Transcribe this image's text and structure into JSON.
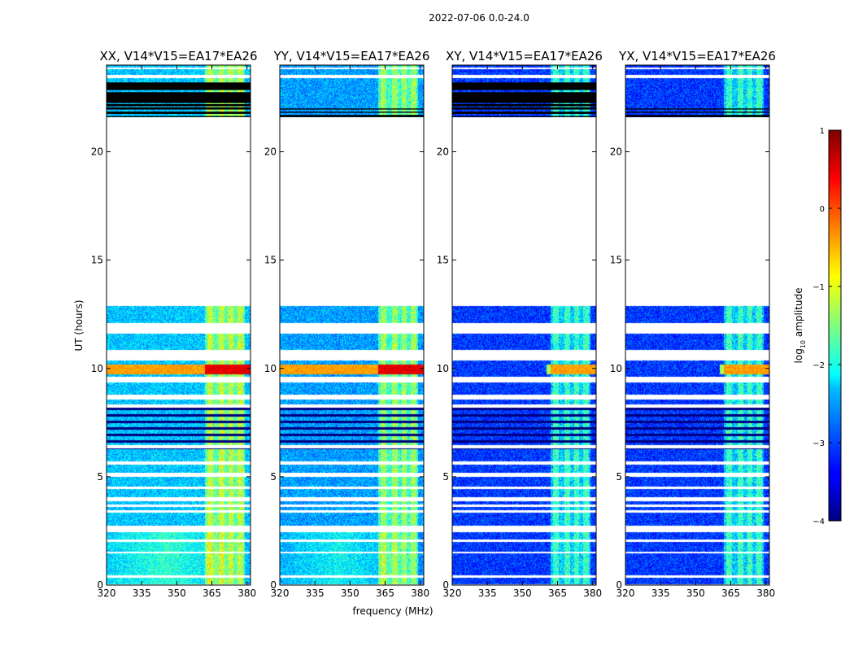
{
  "chart_data": {
    "type": "heatmap",
    "suptitle": "2022-07-06 0.0-24.0",
    "xlabel": "frequency (MHz)",
    "ylabel": "UT (hours)",
    "xlim": [
      320,
      381.5
    ],
    "ylim": [
      0,
      24
    ],
    "x_ticks": [
      "320",
      "335",
      "350",
      "365",
      "380"
    ],
    "x_tick_values": [
      320,
      335,
      350,
      365,
      380
    ],
    "y_ticks": [
      "0",
      "5",
      "10",
      "15",
      "20"
    ],
    "y_tick_values": [
      0,
      5,
      10,
      15,
      20
    ],
    "colorbar": {
      "label": "log",
      "label_sub": "10",
      "label_suffix": " amplitude",
      "range": [
        -4,
        1
      ],
      "ticks": [
        "1",
        "0",
        "−1",
        "−2",
        "−3",
        "−4"
      ],
      "tick_values": [
        1,
        0,
        -1,
        -2,
        -3,
        -4
      ],
      "colormap": "jet"
    },
    "panels": [
      {
        "title": "XX, V14*V15=EA17*EA26",
        "pol": "XX",
        "base_level": -2.4,
        "cross": false
      },
      {
        "title": "YY, V14*V15=EA17*EA26",
        "pol": "YY",
        "base_level": -2.6,
        "cross": false
      },
      {
        "title": "XY, V14*V15=EA17*EA26",
        "pol": "XY",
        "base_level": -3.1,
        "cross": true
      },
      {
        "title": "YX, V14*V15=EA17*EA26",
        "pol": "YX",
        "base_level": -3.1,
        "cross": true
      }
    ],
    "time_segments_hours": [
      [
        0.05,
        0.35
      ],
      [
        0.45,
        1.45
      ],
      [
        1.55,
        2.0
      ],
      [
        2.1,
        2.45
      ],
      [
        2.75,
        3.35
      ],
      [
        3.45,
        3.6
      ],
      [
        3.7,
        3.85
      ],
      [
        4.05,
        4.45
      ],
      [
        4.55,
        5.0
      ],
      [
        5.2,
        5.55
      ],
      [
        5.7,
        6.3
      ],
      [
        6.45,
        8.2
      ],
      [
        8.35,
        8.55
      ],
      [
        8.8,
        9.35
      ],
      [
        9.6,
        10.35
      ],
      [
        10.85,
        11.6
      ],
      [
        12.1,
        12.9
      ],
      [
        21.6,
        23.4
      ],
      [
        23.55,
        23.8
      ],
      [
        23.9,
        24.0
      ]
    ],
    "rfi_band_mhz": [
      362,
      379
    ],
    "rfi_lines_mhz": [
      364,
      369,
      373,
      377
    ],
    "strong_rfi_time_hours": [
      9.75,
      10.2
    ]
  }
}
